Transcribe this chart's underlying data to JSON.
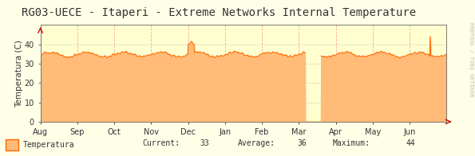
{
  "title": "RG03-UECE - Itaperi - Extreme Networks Internal Temperature",
  "ylabel": "Temperatura (C)",
  "background_color": "#FFFFE8",
  "plot_bg_color": "#FFFFD0",
  "line_color": "#FF6600",
  "fill_color": "#FFBB77",
  "grid_color_v": "#FF9999",
  "grid_color_h": "#DDDDBB",
  "ylim": [
    0,
    50
  ],
  "yticks": [
    0,
    10,
    20,
    30,
    40
  ],
  "x_labels": [
    "Aug",
    "Sep",
    "Oct",
    "Nov",
    "Dec",
    "Jan",
    "Feb",
    "Mar",
    "Apr",
    "May",
    "Jun"
  ],
  "legend_label": "Temperatura",
  "current_val": "33",
  "average_val": "36",
  "maximum_val": "44",
  "watermark": "RRDTOOL / TOBI OETIKER",
  "title_fontsize": 10,
  "label_fontsize": 7.5,
  "tick_fontsize": 7
}
